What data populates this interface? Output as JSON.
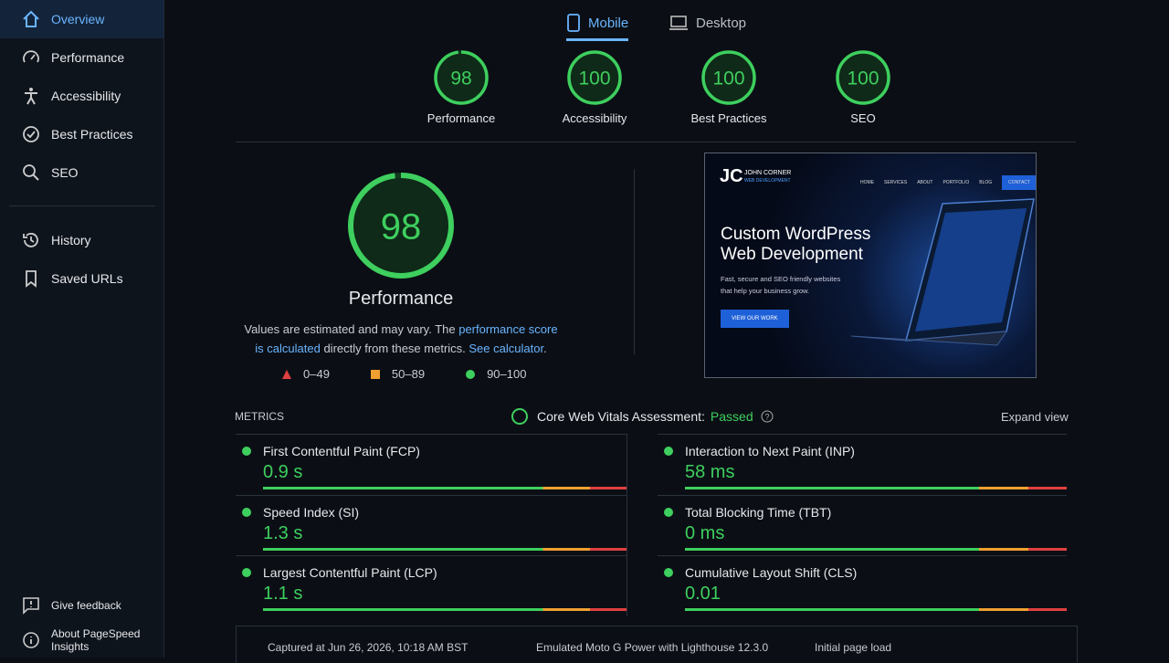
{
  "sidebar": {
    "nav": [
      "Overview",
      "Performance",
      "Accessibility",
      "Best Practices",
      "SEO"
    ],
    "secondary": [
      "History",
      "Saved URLs"
    ],
    "footer": [
      "Give feedback",
      "About PageSpeed Insights"
    ]
  },
  "tabs": [
    "Mobile",
    "Desktop"
  ],
  "scores": [
    {
      "value": 98,
      "label": "Performance"
    },
    {
      "value": 100,
      "label": "Accessibility"
    },
    {
      "value": 100,
      "label": "Best Practices"
    },
    {
      "value": 100,
      "label": "SEO"
    }
  ],
  "performance": {
    "score": 98,
    "title": "Performance",
    "description": [
      "Values are estimated and may vary. The ",
      "performance score is calculated",
      " directly from these metrics. ",
      "See calculator",
      "."
    ],
    "legend": [
      "0–49",
      "50–89",
      "90–100"
    ]
  },
  "screenshot": {
    "logo": "JC",
    "name": "JOHN CORNER",
    "tagline": "WEB DEVELOPMENT",
    "nav": [
      "HOME",
      "SERVICES",
      "ABOUT",
      "PORTFOLIO",
      "BLOG",
      "CONTACT"
    ],
    "headline": [
      "Custom WordPress",
      "Web Development"
    ],
    "subtext": [
      "Fast, secure and SEO friendly websites",
      "that help your business grow."
    ],
    "button": "VIEW OUR WORK"
  },
  "metrics": {
    "label": "METRICS",
    "cwv_label": "Core Web Vitals Assessment:",
    "cwv_status": "Passed",
    "expand": "Expand view",
    "items": [
      {
        "name": "First Contentful Paint (FCP)",
        "value": "0.9 s"
      },
      {
        "name": "Interaction to Next Paint (INP)",
        "value": "58 ms"
      },
      {
        "name": "Speed Index (SI)",
        "value": "1.3 s"
      },
      {
        "name": "Total Blocking Time (TBT)",
        "value": "0 ms"
      },
      {
        "name": "Largest Contentful Paint (LCP)",
        "value": "1.1 s"
      },
      {
        "name": "Cumulative Layout Shift (CLS)",
        "value": "0.01"
      }
    ]
  },
  "footer": [
    "Captured at Jun 26, 2026, 10:18 AM BST",
    "Emulated Moto G Power with Lighthouse 12.3.0",
    "Initial page load"
  ]
}
